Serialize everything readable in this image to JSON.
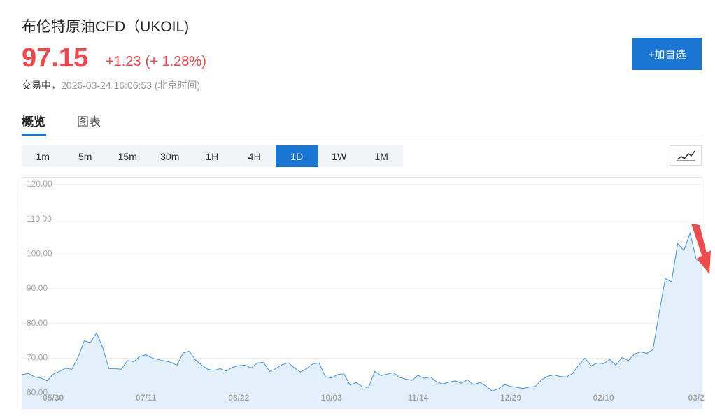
{
  "header": {
    "title": "布伦特原油CFD（UKOIL)",
    "price": "97.15",
    "change": "+1.23",
    "change_pct": "(+ 1.28%)",
    "status": "交易中，",
    "timestamp": "2026-03-24 16:06:53",
    "timezone": "(北京时间)",
    "watch_button": "+加自选"
  },
  "tabs": [
    "概览",
    "图表"
  ],
  "periods": {
    "options": [
      "1m",
      "5m",
      "15m",
      "30m",
      "1H",
      "4H",
      "1D",
      "1W",
      "1M"
    ],
    "active": "1D"
  },
  "chart_data": {
    "type": "area",
    "color": "#4a90d9",
    "fill": "#e3f0fc",
    "grid": true,
    "categories": [
      null,
      null,
      null,
      null,
      null,
      "05/30",
      null,
      null,
      null,
      null,
      null,
      null,
      null,
      null,
      null,
      null,
      null,
      null,
      null,
      null,
      "07/11",
      null,
      null,
      null,
      null,
      null,
      null,
      null,
      null,
      null,
      null,
      null,
      null,
      null,
      null,
      "08/22",
      null,
      null,
      null,
      null,
      null,
      null,
      null,
      null,
      null,
      null,
      null,
      null,
      null,
      null,
      "10/03",
      null,
      null,
      null,
      null,
      null,
      null,
      null,
      null,
      null,
      null,
      null,
      null,
      null,
      "11/14",
      null,
      null,
      null,
      null,
      null,
      null,
      null,
      null,
      null,
      null,
      null,
      null,
      null,
      null,
      "12/29",
      null,
      null,
      null,
      null,
      null,
      null,
      null,
      null,
      null,
      null,
      null,
      null,
      null,
      null,
      "02/10",
      null,
      null,
      null,
      null,
      null,
      null,
      null,
      null,
      null,
      null,
      null,
      null,
      null,
      null,
      "03/2",
      null
    ],
    "values": [
      65.3,
      65.6,
      64.6,
      64.3,
      63.5,
      65.4,
      66.2,
      67.1,
      66.8,
      70.2,
      75,
      74.5,
      77.3,
      73,
      67,
      67,
      66.8,
      69.3,
      69,
      70.5,
      71,
      70,
      69.6,
      69.2,
      68.8,
      68,
      71.5,
      72,
      69.5,
      68,
      66.8,
      66.5,
      67,
      66.3,
      67.4,
      67.8,
      68,
      67.2,
      68.6,
      68.8,
      66.2,
      67,
      68.1,
      68.7,
      67.2,
      66,
      67,
      68.4,
      68.6,
      64.7,
      64.3,
      65.3,
      65.5,
      62.3,
      63,
      61.8,
      61.6,
      66.2,
      65,
      65.4,
      65.8,
      64.5,
      64,
      63.6,
      65.1,
      64.2,
      64.6,
      63.2,
      62.6,
      63.1,
      63.5,
      62.8,
      63.8,
      62.4,
      63,
      62,
      60.6,
      61.2,
      62.4,
      61.9,
      61.6,
      61.3,
      61.7,
      61.9,
      63.8,
      64.8,
      65.2,
      64.7,
      64.6,
      65.6,
      68,
      70,
      67.8,
      68.6,
      68.4,
      69.6,
      68,
      70.2,
      69.3,
      71.2,
      71.8,
      71.4,
      72.5,
      83,
      93,
      92,
      103,
      101,
      106,
      98.5,
      97.15
    ],
    "ylim": [
      55.4,
      122.2
    ],
    "yticks": [
      {
        "value": 60,
        "label": "60.00"
      },
      {
        "value": 70,
        "label": "70.00"
      },
      {
        "value": 80,
        "label": "80.00"
      },
      {
        "value": 90,
        "label": "90.00"
      },
      {
        "value": 100,
        "label": "100.00"
      },
      {
        "value": 110,
        "label": "110.00"
      },
      {
        "value": 120,
        "label": "120.00"
      }
    ]
  }
}
